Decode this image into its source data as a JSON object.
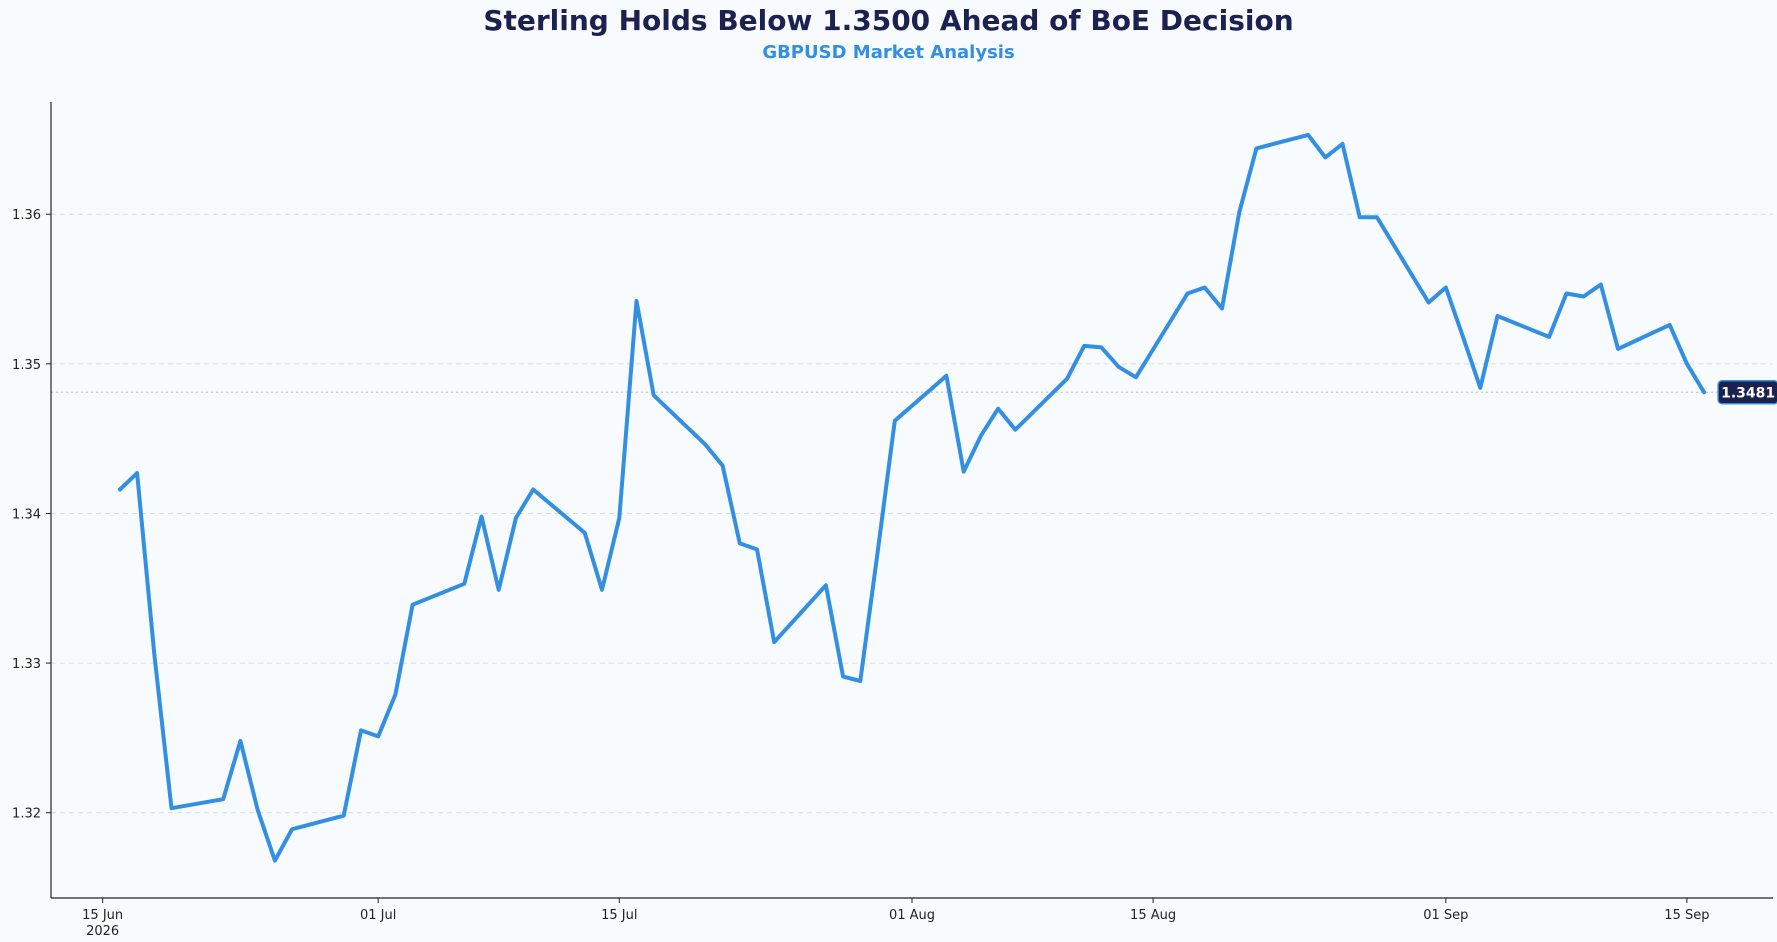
{
  "chart_data": {
    "type": "line",
    "title": "Sterling Holds Below 1.3500 Ahead of BoE Decision",
    "subtitle": "GBPUSD Market Analysis",
    "xlabel": "",
    "ylabel": "",
    "x_start": "2026-06-16",
    "x_range": [
      "2026-06-12",
      "2026-09-20"
    ],
    "ylim": [
      1.3143,
      1.3675
    ],
    "grid": "horizontal-dashed",
    "y_ticks": [
      {
        "value": 1.32,
        "label": "1.32"
      },
      {
        "value": 1.33,
        "label": "1.33"
      },
      {
        "value": 1.34,
        "label": "1.34"
      },
      {
        "value": 1.35,
        "label": "1.35"
      },
      {
        "value": 1.36,
        "label": "1.36"
      }
    ],
    "x_ticks": [
      {
        "date": "2026-06-15",
        "label": "15 Jun",
        "sublabel": "2026"
      },
      {
        "date": "2026-07-01",
        "label": "01 Jul",
        "sublabel": ""
      },
      {
        "date": "2026-07-15",
        "label": "15 Jul",
        "sublabel": ""
      },
      {
        "date": "2026-08-01",
        "label": "01 Aug",
        "sublabel": ""
      },
      {
        "date": "2026-08-15",
        "label": "15 Aug",
        "sublabel": ""
      },
      {
        "date": "2026-09-01",
        "label": "01 Sep",
        "sublabel": ""
      },
      {
        "date": "2026-09-15",
        "label": "15 Sep",
        "sublabel": ""
      }
    ],
    "series": [
      {
        "name": "",
        "color": "#338fe1",
        "x": [
          "2026-06-16",
          "2026-06-17",
          "2026-06-18",
          "2026-06-19",
          "2026-06-22",
          "2026-06-23",
          "2026-06-24",
          "2026-06-25",
          "2026-06-26",
          "2026-06-29",
          "2026-06-30",
          "2026-07-01",
          "2026-07-02",
          "2026-07-03",
          "2026-07-06",
          "2026-07-07",
          "2026-07-08",
          "2026-07-09",
          "2026-07-10",
          "2026-07-13",
          "2026-07-14",
          "2026-07-15",
          "2026-07-16",
          "2026-07-17",
          "2026-07-20",
          "2026-07-21",
          "2026-07-22",
          "2026-07-23",
          "2026-07-24",
          "2026-07-27",
          "2026-07-28",
          "2026-07-29",
          "2026-07-30",
          "2026-07-31",
          "2026-08-03",
          "2026-08-04",
          "2026-08-05",
          "2026-08-06",
          "2026-08-07",
          "2026-08-10",
          "2026-08-11",
          "2026-08-12",
          "2026-08-13",
          "2026-08-14",
          "2026-08-17",
          "2026-08-18",
          "2026-08-19",
          "2026-08-20",
          "2026-08-21",
          "2026-08-24",
          "2026-08-25",
          "2026-08-26",
          "2026-08-27",
          "2026-08-28",
          "2026-08-31",
          "2026-09-01",
          "2026-09-02",
          "2026-09-03",
          "2026-09-04",
          "2026-09-07",
          "2026-09-08",
          "2026-09-09",
          "2026-09-10",
          "2026-09-11",
          "2026-09-14",
          "2026-09-15",
          "2026-09-16"
        ],
        "values": [
          1.3416,
          1.3427,
          1.3306,
          1.3203,
          1.3209,
          1.3248,
          1.3202,
          1.3168,
          1.3189,
          1.3198,
          1.3255,
          1.3251,
          1.3279,
          1.3339,
          1.3353,
          1.3398,
          1.3349,
          1.3397,
          1.3416,
          1.3387,
          1.3349,
          1.3397,
          1.3542,
          1.3479,
          1.3446,
          1.3432,
          1.338,
          1.3376,
          1.3314,
          1.3352,
          1.3291,
          1.3288,
          1.3374,
          1.3462,
          1.3492,
          1.3428,
          1.3452,
          1.347,
          1.3456,
          1.349,
          1.3512,
          1.3511,
          1.3498,
          1.3491,
          1.3547,
          1.3551,
          1.3537,
          1.3601,
          1.3644,
          1.3653,
          1.3638,
          1.3647,
          1.3598,
          1.3598,
          1.3541,
          1.3551,
          1.3518,
          1.3484,
          1.3532,
          1.3518,
          1.3547,
          1.3545,
          1.3553,
          1.351,
          1.3526,
          1.35,
          1.3481
        ]
      }
    ],
    "reference_line": {
      "value": 1.3481,
      "style": "dotted"
    },
    "last_value_label": "1.3481",
    "colors": {
      "title": "#1c2150",
      "subtitle": "#338fe1",
      "line": "#338fe1",
      "badge_bg": "#1c2150",
      "badge_border": "#338fe1",
      "grid": "#d6dce3",
      "background": "#f8fbfe"
    }
  }
}
